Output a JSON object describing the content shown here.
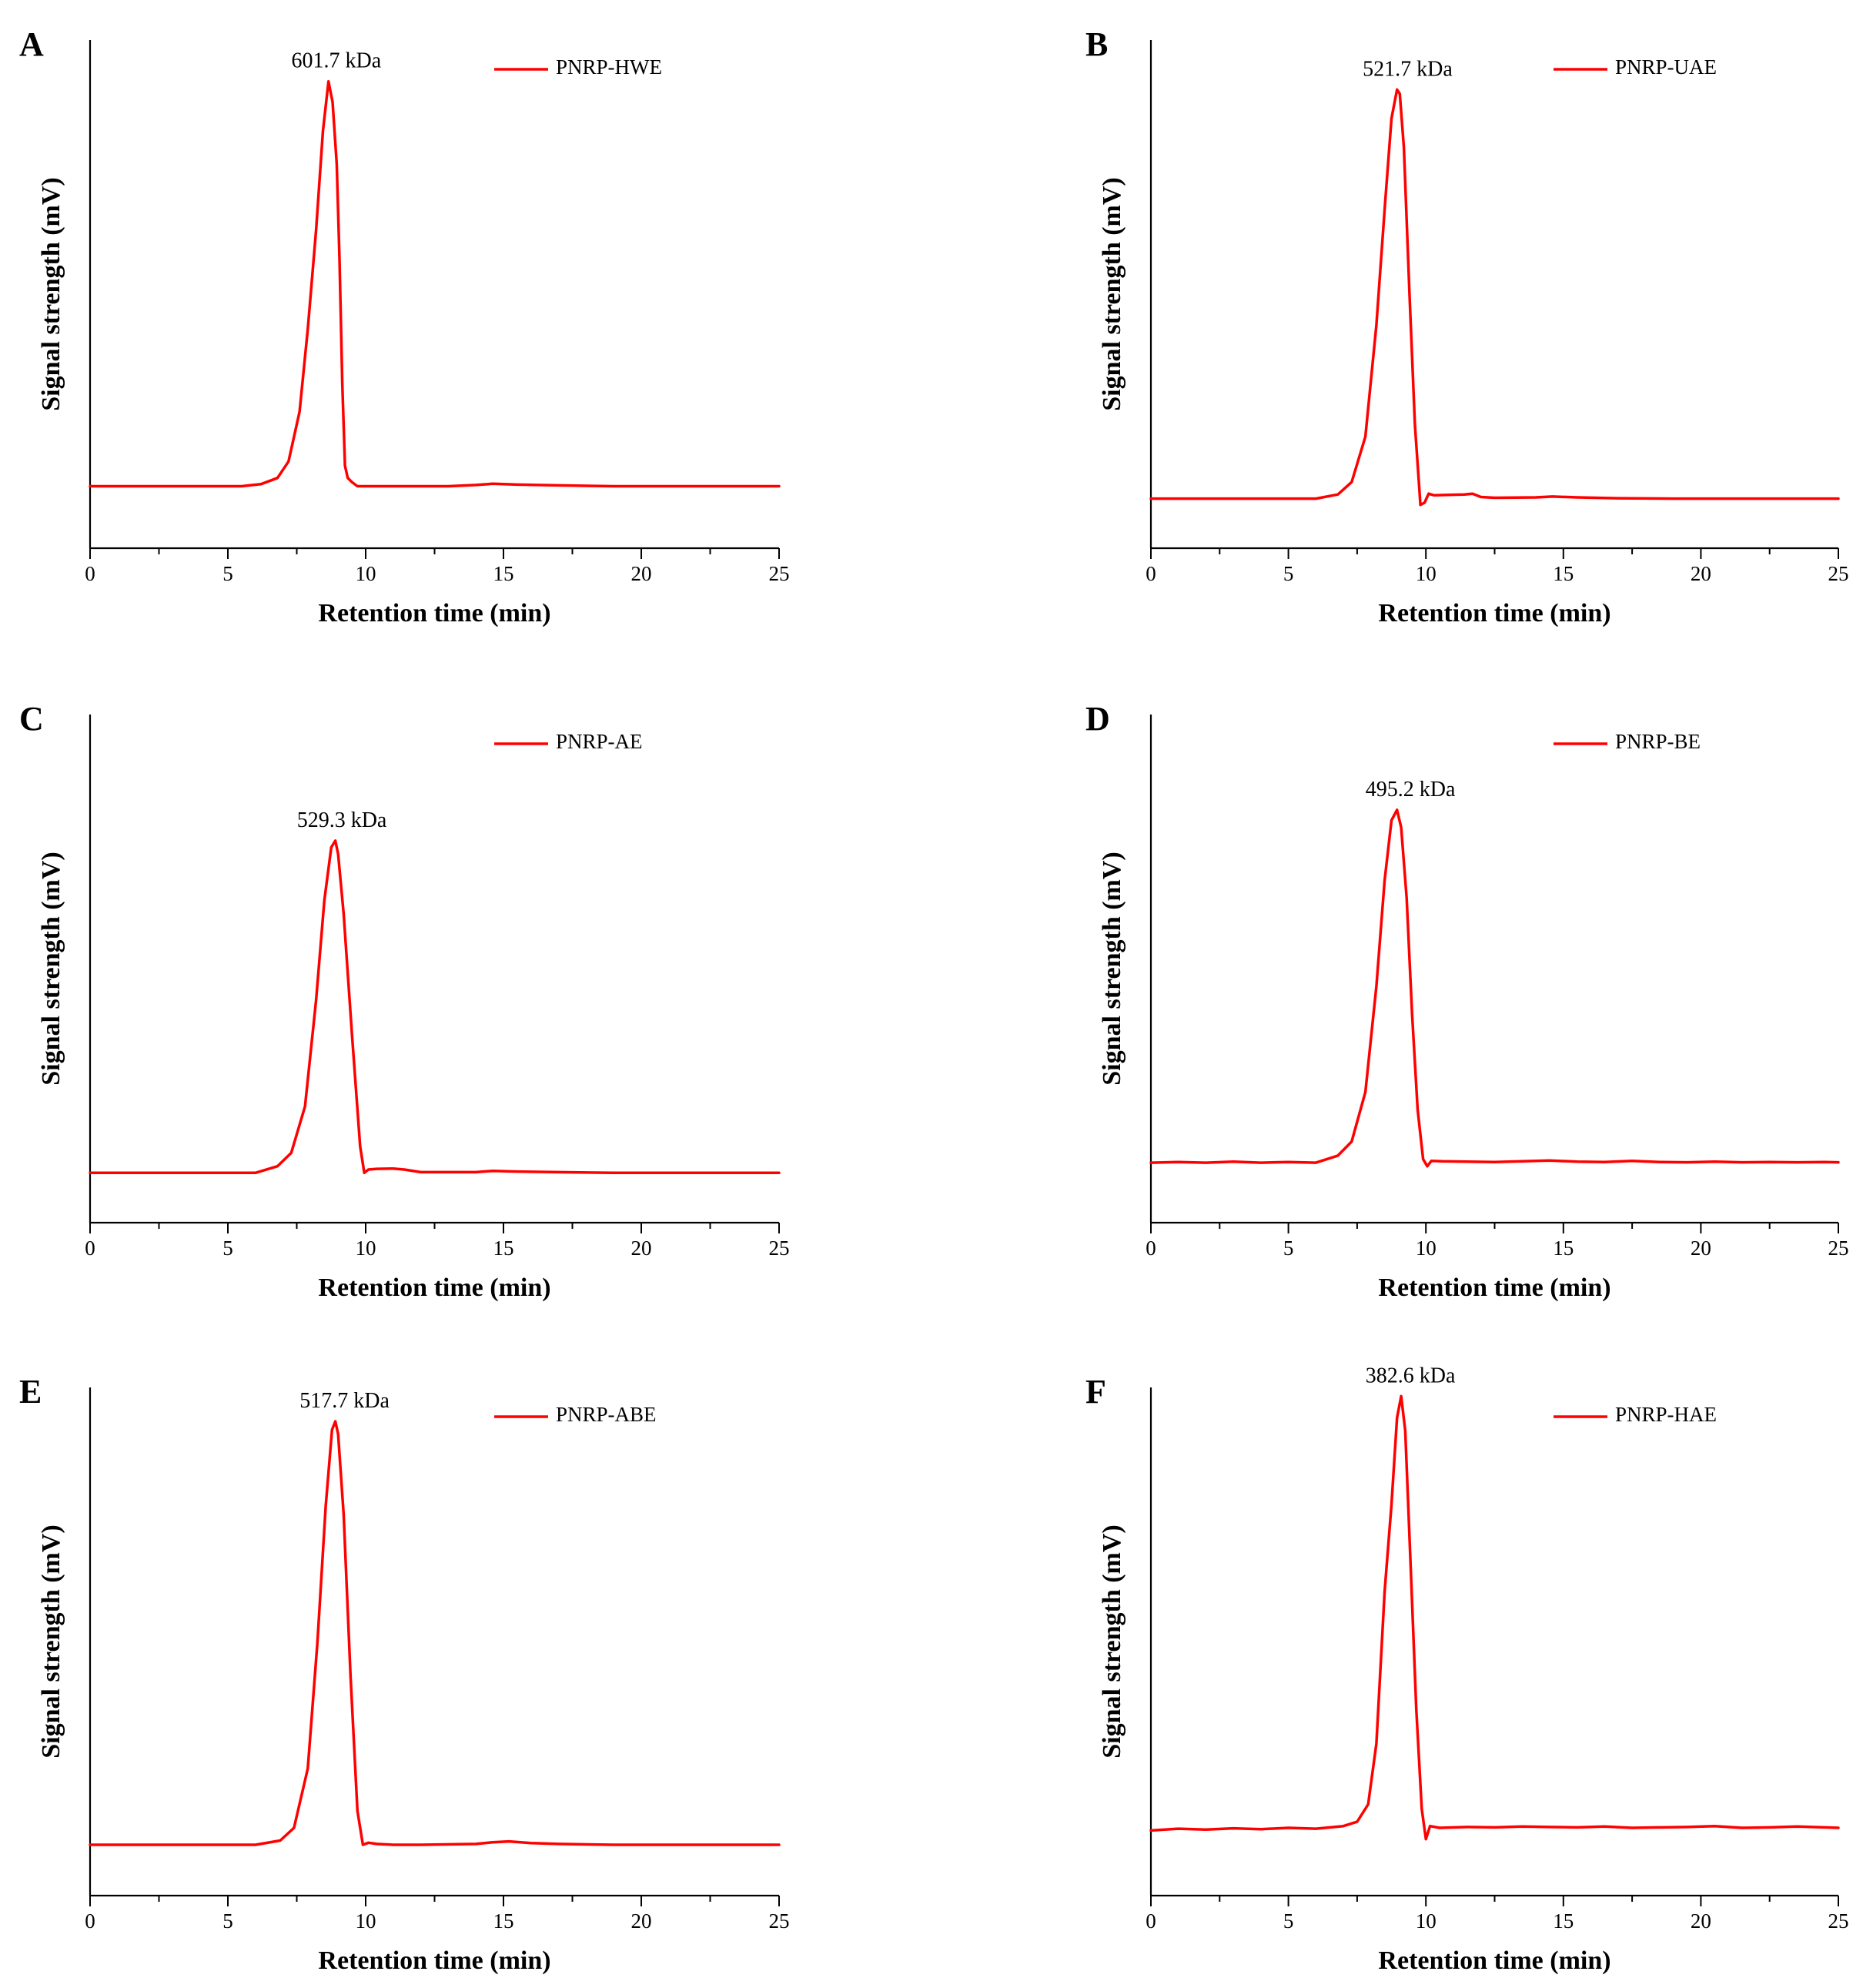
{
  "chart_data": [
    {
      "type": "line",
      "panel": "A",
      "xlabel": "Retention time (min)",
      "ylabel": "Signal strength (mV)",
      "xlim": [
        0,
        25
      ],
      "xticks": [
        0,
        5,
        10,
        15,
        20,
        25
      ],
      "ylim": [
        -0.15,
        1.08
      ],
      "legend": "top-right",
      "series": [
        {
          "name": "PNRP-HWE",
          "color": "#ff0000",
          "x": [
            0,
            2,
            4,
            5.5,
            6.2,
            6.8,
            7.2,
            7.6,
            7.9,
            8.2,
            8.45,
            8.65,
            8.8,
            8.95,
            9.05,
            9.15,
            9.25,
            9.35,
            9.5,
            9.7,
            10,
            11,
            12,
            13,
            14,
            14.6,
            15.5,
            17,
            19,
            21,
            23,
            25
          ],
          "y": [
            0,
            0,
            0,
            0,
            0.005,
            0.02,
            0.06,
            0.18,
            0.38,
            0.62,
            0.86,
            0.98,
            0.93,
            0.78,
            0.55,
            0.25,
            0.05,
            0.02,
            0.01,
            0.0,
            0,
            0,
            0,
            0,
            0.003,
            0.006,
            0.004,
            0.002,
            0,
            0,
            0,
            0
          ]
        }
      ],
      "annotations": [
        {
          "text": "601.7 kDa",
          "x": 8.6,
          "y": 0.98
        }
      ]
    },
    {
      "type": "line",
      "panel": "B",
      "xlabel": "Retention time (min)",
      "ylabel": "Signal strength (mV)",
      "xlim": [
        0,
        25
      ],
      "xticks": [
        0,
        5,
        10,
        15,
        20,
        25
      ],
      "ylim": [
        -0.12,
        1.11
      ],
      "legend": "top-right",
      "series": [
        {
          "name": "PNRP-UAE",
          "color": "#ff0000",
          "x": [
            0,
            2,
            4,
            6,
            6.8,
            7.3,
            7.8,
            8.2,
            8.5,
            8.75,
            8.95,
            9.05,
            9.2,
            9.4,
            9.6,
            9.8,
            9.95,
            10.1,
            10.3,
            10.8,
            11.4,
            11.7,
            12.0,
            12.5,
            14,
            14.6,
            15.5,
            17,
            19,
            21,
            23,
            25
          ],
          "y": [
            0,
            0,
            0,
            0,
            0.01,
            0.04,
            0.15,
            0.42,
            0.7,
            0.92,
            0.99,
            0.98,
            0.85,
            0.5,
            0.18,
            -0.015,
            -0.01,
            0.012,
            0.008,
            0.009,
            0.01,
            0.012,
            0.004,
            0.002,
            0.003,
            0.005,
            0.003,
            0.001,
            0,
            0,
            0,
            0
          ]
        }
      ],
      "annotations": [
        {
          "text": "521.7 kDa",
          "x": 9.0,
          "y": 0.99
        }
      ]
    },
    {
      "type": "line",
      "panel": "C",
      "xlabel": "Retention time (min)",
      "ylabel": "Signal strength (mV)",
      "xlim": [
        0,
        25
      ],
      "xticks": [
        0,
        5,
        10,
        15,
        20,
        25
      ],
      "ylim": [
        -0.15,
        1.38
      ],
      "legend": "top-right",
      "series": [
        {
          "name": "PNRP-AE",
          "color": "#ff0000",
          "x": [
            0,
            2,
            4,
            6,
            6.8,
            7.3,
            7.8,
            8.2,
            8.5,
            8.75,
            8.9,
            9.0,
            9.2,
            9.5,
            9.8,
            9.95,
            10.1,
            10.4,
            11.0,
            11.4,
            12,
            14,
            14.6,
            15.5,
            17,
            19,
            21,
            23,
            25
          ],
          "y": [
            0,
            0,
            0,
            0,
            0.02,
            0.06,
            0.2,
            0.52,
            0.82,
            0.98,
            1.0,
            0.96,
            0.78,
            0.42,
            0.08,
            0.0,
            0.01,
            0.012,
            0.013,
            0.01,
            0.002,
            0.002,
            0.006,
            0.004,
            0.002,
            0,
            0,
            0,
            0
          ]
        }
      ],
      "annotations": [
        {
          "text": "529.3 kDa",
          "x": 8.8,
          "y": 1.0
        }
      ]
    },
    {
      "type": "line",
      "panel": "D",
      "xlabel": "Retention time (min)",
      "ylabel": "Signal strength (mV)",
      "xlim": [
        0,
        25
      ],
      "xticks": [
        0,
        5,
        10,
        15,
        20,
        25
      ],
      "ylim": [
        -0.17,
        1.27
      ],
      "legend": "top-right",
      "series": [
        {
          "name": "PNRP-BE",
          "color": "#ff0000",
          "x": [
            0,
            1,
            2,
            3,
            4,
            5,
            6,
            6.8,
            7.3,
            7.8,
            8.2,
            8.5,
            8.75,
            8.95,
            9.1,
            9.3,
            9.5,
            9.7,
            9.9,
            10.05,
            10.2,
            10.6,
            11.5,
            12.5,
            13.5,
            14.5,
            15.5,
            16.5,
            17.5,
            18.5,
            19.5,
            20.5,
            21.5,
            22.5,
            23.5,
            24.5,
            25
          ],
          "y": [
            0,
            0.002,
            0,
            0.003,
            0,
            0.002,
            0,
            0.02,
            0.06,
            0.2,
            0.5,
            0.8,
            0.97,
            1.0,
            0.95,
            0.75,
            0.42,
            0.15,
            0.01,
            -0.01,
            0.005,
            0.004,
            0.003,
            0.002,
            0.004,
            0.006,
            0.003,
            0.002,
            0.005,
            0.002,
            0.001,
            0.003,
            0.001,
            0.002,
            0.001,
            0.002,
            0.001
          ]
        }
      ],
      "annotations": [
        {
          "text": "495.2 kDa",
          "x": 9.1,
          "y": 1.0
        }
      ]
    },
    {
      "type": "line",
      "panel": "E",
      "xlabel": "Retention time (min)",
      "ylabel": "Signal strength (mV)",
      "xlim": [
        0,
        25
      ],
      "xticks": [
        0,
        5,
        10,
        15,
        20,
        25
      ],
      "ylim": [
        -0.12,
        1.08
      ],
      "legend": "top-right",
      "series": [
        {
          "name": "PNRP-ABE",
          "color": "#ff0000",
          "x": [
            0,
            2,
            4,
            6,
            6.9,
            7.4,
            7.9,
            8.25,
            8.55,
            8.78,
            8.9,
            9.0,
            9.2,
            9.45,
            9.7,
            9.9,
            10.1,
            10.4,
            11,
            12,
            14,
            14.6,
            15.2,
            16,
            17,
            19,
            21,
            23,
            25
          ],
          "y": [
            0,
            0,
            0,
            0,
            0.01,
            0.04,
            0.18,
            0.48,
            0.8,
            0.98,
            1.0,
            0.97,
            0.78,
            0.4,
            0.08,
            0.0,
            0.005,
            0.002,
            0,
            0,
            0.002,
            0.006,
            0.008,
            0.004,
            0.002,
            0,
            0,
            0,
            0
          ]
        }
      ],
      "annotations": [
        {
          "text": "517.7 kDa",
          "x": 8.9,
          "y": 1.0
        }
      ]
    },
    {
      "type": "line",
      "panel": "F",
      "xlabel": "Retention time (min)",
      "ylabel": "Signal strength (mV)",
      "xlim": [
        0,
        25
      ],
      "xticks": [
        0,
        5,
        10,
        15,
        20,
        25
      ],
      "ylim": [
        -0.15,
        1.02
      ],
      "legend": "top-right",
      "series": [
        {
          "name": "PNRP-HAE",
          "color": "#ff0000",
          "x": [
            0,
            1,
            2,
            3,
            4,
            5,
            6,
            7,
            7.5,
            7.9,
            8.2,
            8.5,
            8.75,
            8.95,
            9.1,
            9.25,
            9.45,
            9.65,
            9.85,
            10.0,
            10.15,
            10.5,
            11.5,
            12.5,
            13.5,
            14.5,
            15.5,
            16.5,
            17.5,
            18.5,
            19.5,
            20.5,
            21.5,
            22.5,
            23.5,
            24.5,
            25
          ],
          "y": [
            0,
            0.004,
            0.002,
            0.005,
            0.003,
            0.006,
            0.004,
            0.01,
            0.02,
            0.06,
            0.2,
            0.55,
            0.75,
            0.95,
            1.0,
            0.92,
            0.6,
            0.28,
            0.05,
            -0.02,
            0.01,
            0.006,
            0.008,
            0.007,
            0.009,
            0.008,
            0.007,
            0.009,
            0.006,
            0.007,
            0.008,
            0.01,
            0.006,
            0.007,
            0.009,
            0.007,
            0.006
          ]
        }
      ],
      "annotations": [
        {
          "text": "382.6 kDa",
          "x": 9.1,
          "y": 1.0
        }
      ]
    }
  ]
}
